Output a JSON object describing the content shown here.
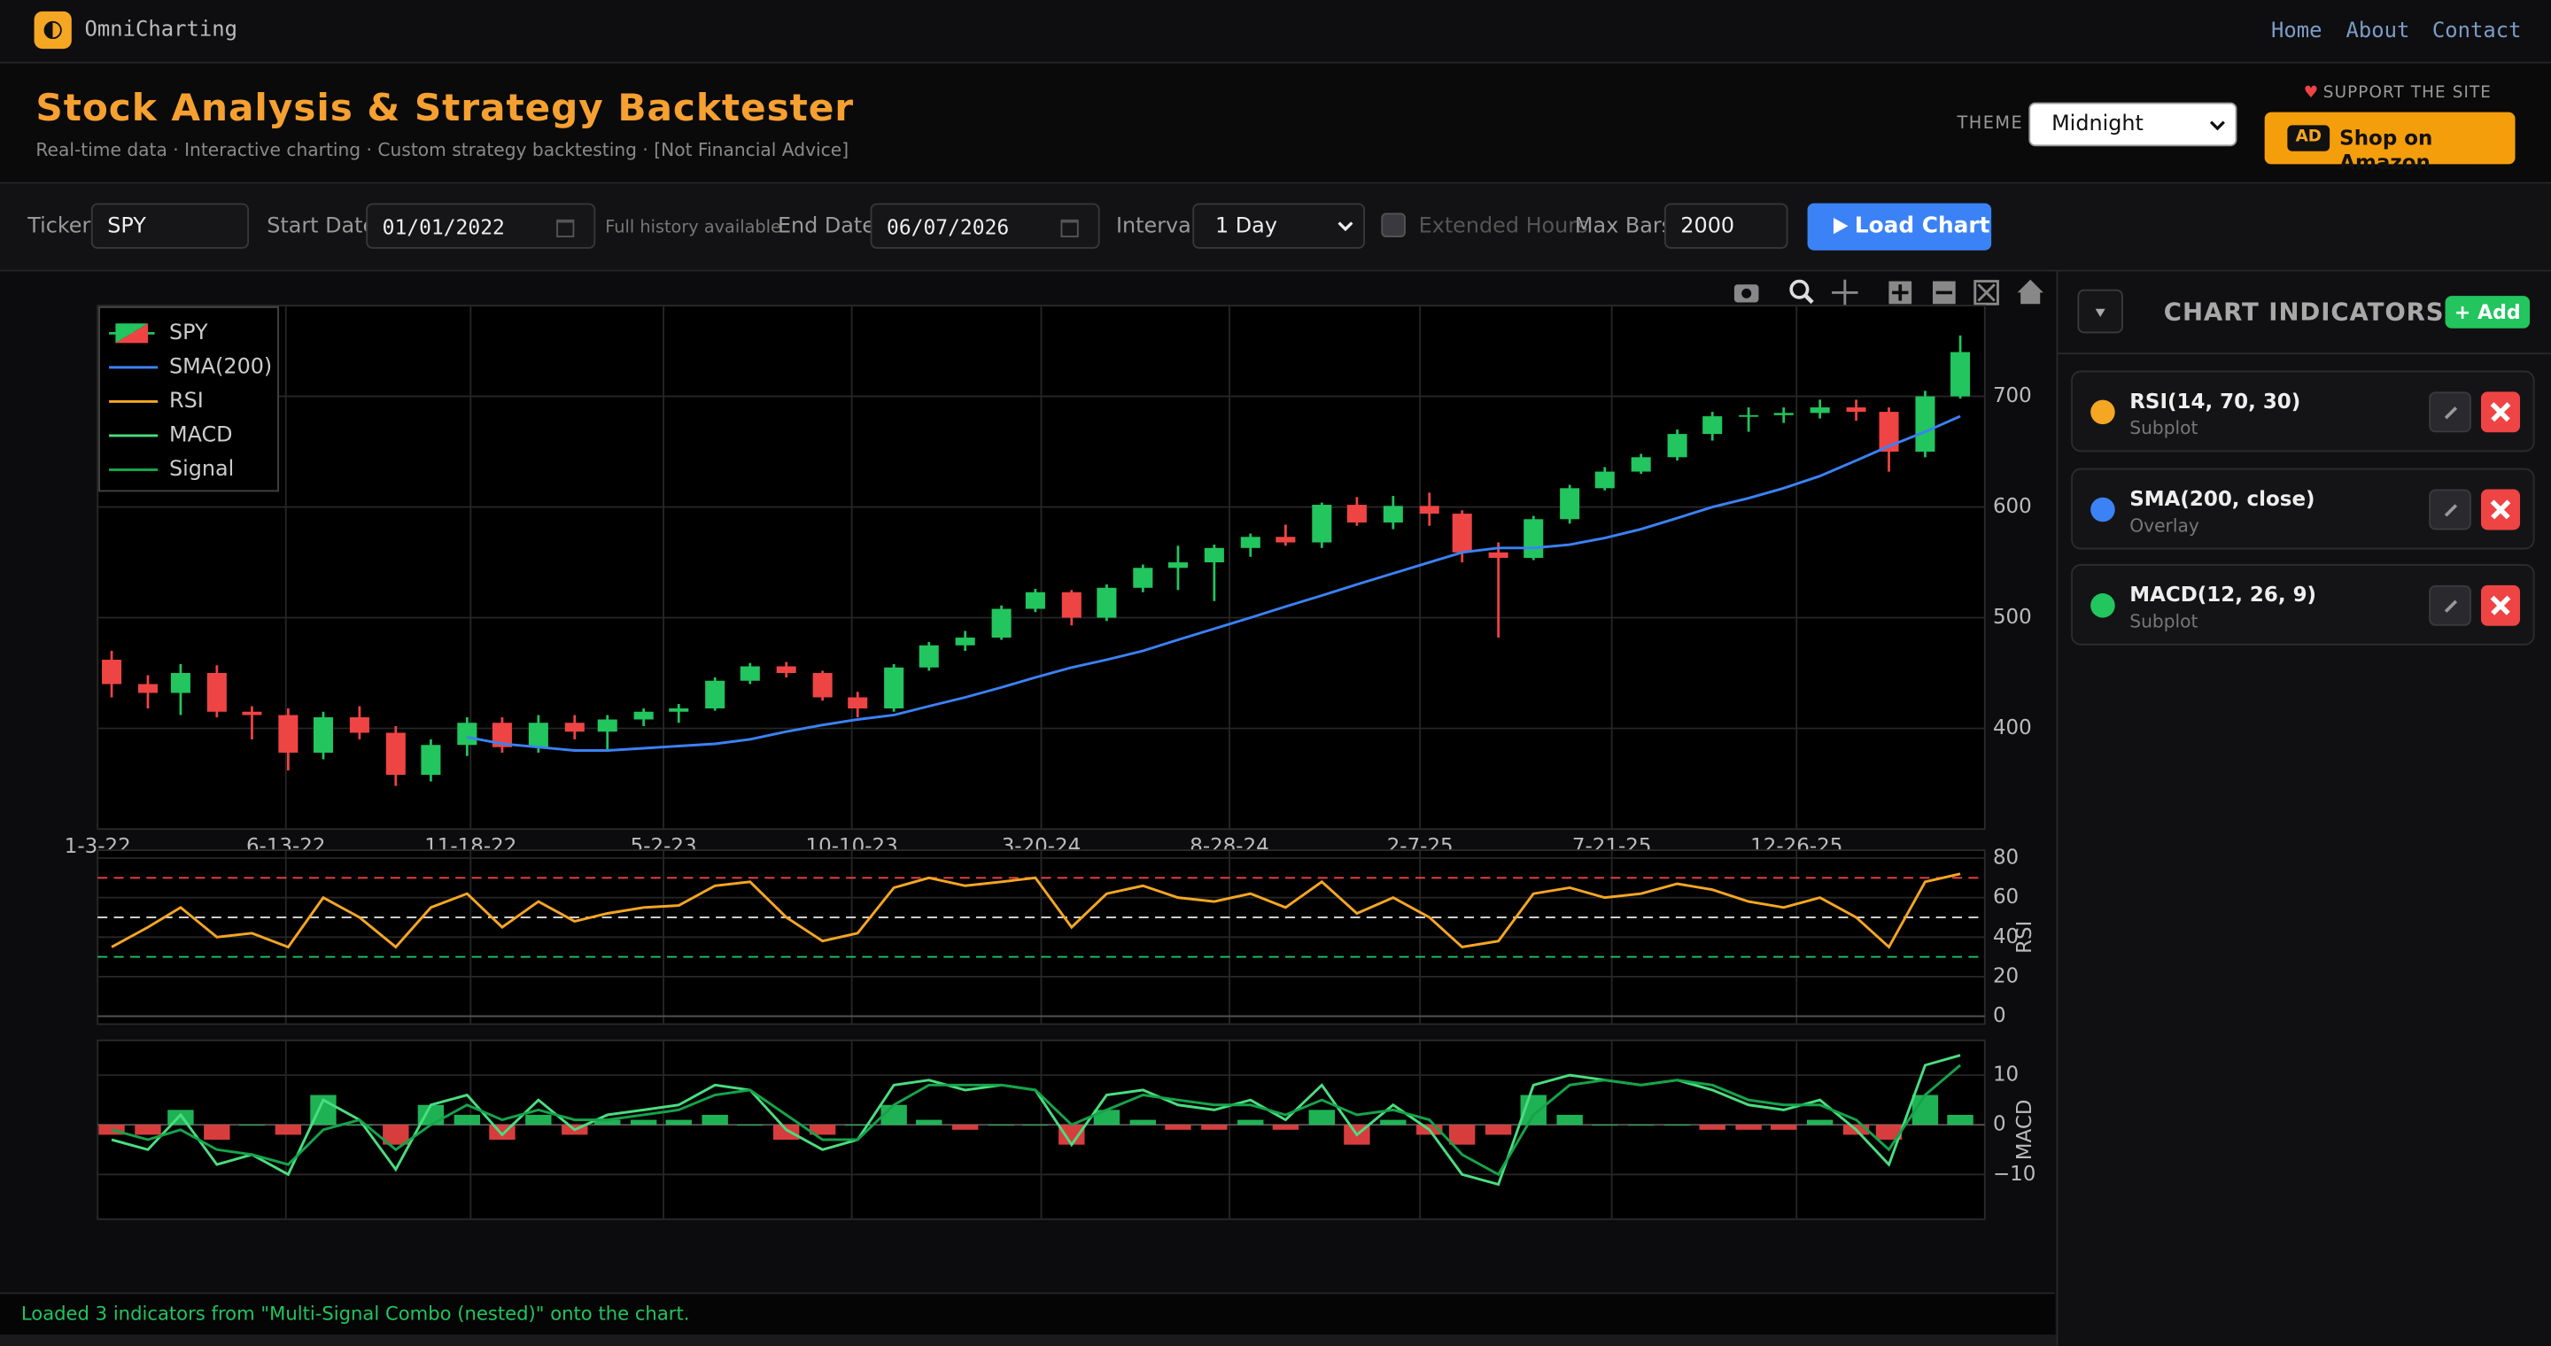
{
  "navbar": {
    "brand": "OmniCharting",
    "links": [
      "Home",
      "About",
      "Contact"
    ]
  },
  "header": {
    "title": "Stock Analysis & Strategy Backtester",
    "subtitle": "Real-time data · Interactive charting · Custom strategy backtesting · [Not Financial Advice]",
    "theme_label": "THEME",
    "theme": "Midnight",
    "support": "SUPPORT THE SITE",
    "ad_badge": "AD",
    "ad_button": "Shop on Amazon"
  },
  "controls": {
    "ticker_label": "Ticker",
    "ticker": "SPY",
    "start_label": "Start Date",
    "start": "01/01/2022",
    "history_note": "Full history available",
    "end_label": "End Date",
    "end": "06/07/2026",
    "interval_label": "Interval",
    "interval": "1 Day",
    "extended_hours": "Extended Hours",
    "max_bars_label": "Max Bars",
    "max_bars": "2000",
    "load": "Load Chart"
  },
  "chart_data": [
    {
      "type": "candlestick",
      "name": "SPY",
      "x": [
        "2022-01-15",
        "2022-02-15",
        "2022-03-15",
        "2022-04-15",
        "2022-05-15",
        "2022-06-15",
        "2022-07-15",
        "2022-08-15",
        "2022-09-15",
        "2022-10-15",
        "2022-11-15",
        "2022-12-15",
        "2023-01-15",
        "2023-02-15",
        "2023-03-15",
        "2023-04-15",
        "2023-05-15",
        "2023-06-15",
        "2023-07-15",
        "2023-08-15",
        "2023-09-15",
        "2023-10-15",
        "2023-11-15",
        "2023-12-15",
        "2024-01-15",
        "2024-02-15",
        "2024-03-15",
        "2024-04-15",
        "2024-05-15",
        "2024-06-15",
        "2024-07-15",
        "2024-08-15",
        "2024-09-15",
        "2024-10-15",
        "2024-11-15",
        "2024-12-15",
        "2025-01-15",
        "2025-02-15",
        "2025-03-15",
        "2025-04-15",
        "2025-05-15",
        "2025-06-15",
        "2025-07-15",
        "2025-08-15",
        "2025-09-15",
        "2025-10-15",
        "2025-11-15",
        "2025-12-15",
        "2026-01-15",
        "2026-02-15",
        "2026-03-15",
        "2026-04-15",
        "2026-05-15"
      ],
      "open": [
        462,
        440,
        432,
        450,
        415,
        412,
        378,
        410,
        396,
        358,
        385,
        405,
        383,
        405,
        397,
        408,
        415,
        418,
        443,
        456,
        450,
        428,
        418,
        455,
        475,
        482,
        508,
        523,
        500,
        527,
        545,
        550,
        563,
        573,
        568,
        602,
        586,
        601,
        594,
        559,
        554,
        589,
        617,
        632,
        645,
        666,
        682,
        683,
        685,
        690,
        686,
        650,
        700
      ],
      "high": [
        470,
        448,
        458,
        457,
        420,
        418,
        415,
        420,
        402,
        390,
        410,
        410,
        412,
        412,
        412,
        418,
        422,
        446,
        459,
        460,
        452,
        433,
        458,
        478,
        488,
        511,
        526,
        525,
        530,
        548,
        565,
        566,
        576,
        584,
        604,
        609,
        610,
        613,
        597,
        568,
        592,
        620,
        636,
        648,
        670,
        686,
        690,
        690,
        697,
        697,
        690,
        705,
        755
      ],
      "low": [
        428,
        418,
        412,
        410,
        390,
        362,
        372,
        390,
        348,
        352,
        375,
        378,
        378,
        390,
        380,
        402,
        405,
        416,
        440,
        446,
        425,
        410,
        415,
        452,
        470,
        480,
        505,
        493,
        497,
        523,
        525,
        515,
        555,
        565,
        563,
        583,
        580,
        583,
        550,
        482,
        552,
        585,
        615,
        630,
        642,
        660,
        668,
        676,
        680,
        678,
        632,
        645,
        698
      ],
      "close": [
        440,
        432,
        450,
        415,
        412,
        378,
        410,
        396,
        358,
        385,
        405,
        383,
        405,
        397,
        408,
        415,
        418,
        443,
        456,
        450,
        428,
        418,
        455,
        475,
        482,
        508,
        523,
        500,
        527,
        545,
        550,
        563,
        573,
        568,
        602,
        586,
        601,
        594,
        559,
        554,
        589,
        617,
        632,
        645,
        666,
        682,
        683,
        685,
        690,
        686,
        650,
        700,
        740
      ],
      "increasing_color": "#22c55e",
      "decreasing_color": "#ef4444",
      "series": [
        {
          "name": "SMA(200)",
          "color": "#3b82f6",
          "values": [
            null,
            null,
            null,
            null,
            null,
            null,
            null,
            null,
            null,
            null,
            392,
            386,
            383,
            380,
            380,
            382,
            384,
            386,
            390,
            397,
            403,
            408,
            412,
            420,
            428,
            437,
            446,
            455,
            462,
            470,
            480,
            490,
            500,
            510,
            520,
            530,
            540,
            550,
            559,
            563,
            563,
            566,
            572,
            580,
            590,
            600,
            608,
            617,
            628,
            642,
            655,
            668,
            682
          ]
        }
      ],
      "xlim": [
        "2022-01-03",
        "2026-06-05"
      ],
      "xticks": [
        {
          "value": "2022-01-03",
          "label": "1-3-22"
        },
        {
          "value": "2022-06-13",
          "label": "6-13-22"
        },
        {
          "value": "2022-11-18",
          "label": "11-18-22"
        },
        {
          "value": "2023-05-02",
          "label": "5-2-23"
        },
        {
          "value": "2023-10-10",
          "label": "10-10-23"
        },
        {
          "value": "2024-03-20",
          "label": "3-20-24"
        },
        {
          "value": "2024-08-28",
          "label": "8-28-24"
        },
        {
          "value": "2025-02-07",
          "label": "2-7-25"
        },
        {
          "value": "2025-07-21",
          "label": "7-21-25"
        },
        {
          "value": "2025-12-26",
          "label": "12-26-25"
        }
      ],
      "ylim": [
        309,
        782
      ],
      "yticks": [
        400,
        500,
        600,
        700
      ],
      "grid": true,
      "legend": "top-left"
    },
    {
      "type": "line",
      "y_label": "RSI",
      "series": [
        {
          "name": "RSI",
          "color": "#f5a623",
          "values": [
            35,
            45,
            55,
            40,
            42,
            35,
            60,
            50,
            35,
            55,
            62,
            45,
            58,
            48,
            52,
            55,
            56,
            66,
            68,
            50,
            38,
            42,
            65,
            70,
            66,
            68,
            70,
            45,
            62,
            66,
            60,
            58,
            62,
            55,
            68,
            52,
            60,
            50,
            35,
            38,
            62,
            65,
            60,
            62,
            67,
            64,
            58,
            55,
            60,
            50,
            35,
            68,
            72
          ]
        }
      ],
      "levels": [
        {
          "value": 70,
          "color": "#ef4444"
        },
        {
          "value": 50,
          "color": "#dddddd"
        },
        {
          "value": 30,
          "color": "#22c55e"
        }
      ],
      "ylim": [
        -4,
        84
      ],
      "yticks": [
        0,
        20,
        40,
        60,
        80
      ],
      "grid": true
    },
    {
      "type": "line",
      "y_label": "MACD",
      "series": [
        {
          "name": "MACD",
          "color": "#4ade80",
          "values": [
            -3,
            -5,
            2,
            -8,
            -6,
            -10,
            5,
            1,
            -9,
            4,
            6,
            -2,
            5,
            -1,
            2,
            3,
            4,
            8,
            7,
            -1,
            -5,
            -3,
            8,
            9,
            7,
            8,
            7,
            -4,
            6,
            7,
            4,
            3,
            5,
            1,
            8,
            -2,
            4,
            -1,
            -10,
            -12,
            8,
            10,
            9,
            8,
            9,
            7,
            4,
            3,
            5,
            -1,
            -8,
            12,
            14
          ]
        },
        {
          "name": "Signal",
          "color": "#16a34a",
          "values": [
            -1,
            -3,
            -1,
            -5,
            -6,
            -8,
            -1,
            1,
            -5,
            0,
            4,
            1,
            3,
            1,
            1,
            2,
            3,
            6,
            7,
            2,
            -3,
            -3,
            4,
            8,
            8,
            8,
            7,
            0,
            3,
            6,
            5,
            4,
            4,
            2,
            5,
            2,
            3,
            1,
            -6,
            -10,
            2,
            8,
            9,
            8,
            9,
            8,
            5,
            4,
            4,
            1,
            -5,
            6,
            12
          ]
        }
      ],
      "histogram": {
        "positive_color": "#22c55e",
        "negative_color": "#ef4444",
        "values": [
          -2,
          -2,
          3,
          -3,
          0,
          -2,
          6,
          0,
          -4,
          4,
          2,
          -3,
          2,
          -2,
          1,
          1,
          1,
          2,
          0,
          -3,
          -2,
          0,
          4,
          1,
          -1,
          0,
          0,
          -4,
          3,
          1,
          -1,
          -1,
          1,
          -1,
          3,
          -4,
          1,
          -2,
          -4,
          -2,
          6,
          2,
          0,
          0,
          0,
          -1,
          -1,
          -1,
          1,
          -2,
          -3,
          6,
          2
        ]
      },
      "ylim": [
        -19,
        17
      ],
      "yticks": [
        {
          "value": -10,
          "label": "−10"
        },
        0,
        10
      ],
      "grid": true
    }
  ],
  "indicators_panel": {
    "title": "CHART INDICATORS",
    "add": "+ Add",
    "items": [
      {
        "name": "RSI(14, 70, 30)",
        "kind": "Subplot",
        "color": "#f5a623"
      },
      {
        "name": "SMA(200, close)",
        "kind": "Overlay",
        "color": "#3b82f6"
      },
      {
        "name": "MACD(12, 26, 9)",
        "kind": "Subplot",
        "color": "#22c55e"
      }
    ]
  },
  "status": "Loaded 3 indicators from \"Multi-Signal Combo (nested)\" onto the chart."
}
